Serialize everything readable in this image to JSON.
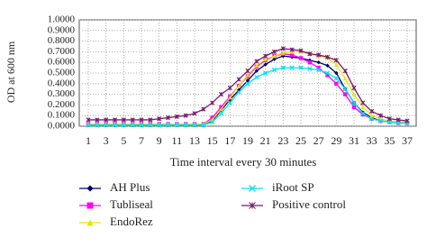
{
  "chart_data": {
    "type": "line",
    "xlabel": "Time interval every 30 minutes",
    "ylabel": "OD at 600 nm",
    "x": [
      1,
      2,
      3,
      4,
      5,
      6,
      7,
      8,
      9,
      10,
      11,
      12,
      13,
      14,
      15,
      16,
      17,
      18,
      19,
      20,
      21,
      22,
      23,
      24,
      25,
      26,
      27,
      28,
      29,
      30,
      31,
      32,
      33,
      34,
      35,
      36,
      37
    ],
    "xlim": [
      1,
      37
    ],
    "xticks": [
      1,
      3,
      5,
      7,
      9,
      11,
      13,
      15,
      17,
      19,
      21,
      23,
      25,
      27,
      29,
      31,
      33,
      35,
      37
    ],
    "ylim": [
      0,
      1
    ],
    "yticks": [
      {
        "value": 0,
        "label": "0.0000"
      },
      {
        "value": 0.1,
        "label": "0.1000"
      },
      {
        "value": 0.2,
        "label": "0.2000"
      },
      {
        "value": 0.3,
        "label": "0.3000"
      },
      {
        "value": 0.4,
        "label": "0.4000"
      },
      {
        "value": 0.5,
        "label": "0.5000"
      },
      {
        "value": 0.6,
        "label": "0.6000"
      },
      {
        "value": 0.7,
        "label": "0.7000"
      },
      {
        "value": 0.8,
        "label": "0.8000"
      },
      {
        "value": 0.9,
        "label": "0.9000"
      },
      {
        "value": 1,
        "label": "1.0000"
      }
    ],
    "grid": true,
    "series": [
      {
        "name": "AH Plus",
        "color": "#000066",
        "marker": "diamond",
        "values": [
          0.01,
          0.01,
          0.01,
          0.01,
          0.01,
          0.01,
          0.01,
          0.01,
          0.01,
          0.01,
          0.01,
          0.01,
          0.01,
          0.01,
          0.05,
          0.15,
          0.25,
          0.34,
          0.43,
          0.52,
          0.58,
          0.63,
          0.66,
          0.65,
          0.64,
          0.62,
          0.6,
          0.57,
          0.5,
          0.35,
          0.22,
          0.13,
          0.08,
          0.05,
          0.04,
          0.03,
          0.03
        ]
      },
      {
        "name": "Tubliseal",
        "color": "#ff00ff",
        "marker": "square",
        "values": [
          0.02,
          0.02,
          0.02,
          0.02,
          0.02,
          0.02,
          0.02,
          0.02,
          0.02,
          0.02,
          0.02,
          0.02,
          0.02,
          0.02,
          0.08,
          0.18,
          0.28,
          0.38,
          0.47,
          0.56,
          0.62,
          0.66,
          0.68,
          0.67,
          0.64,
          0.6,
          0.55,
          0.48,
          0.4,
          0.3,
          0.18,
          0.11,
          0.07,
          0.05,
          0.04,
          0.03,
          0.03
        ]
      },
      {
        "name": "EndoRez",
        "color": "#e6e600",
        "marker": "triangle",
        "values": [
          0.02,
          0.02,
          0.02,
          0.02,
          0.02,
          0.02,
          0.02,
          0.02,
          0.02,
          0.02,
          0.02,
          0.02,
          0.02,
          0.02,
          0.06,
          0.16,
          0.27,
          0.38,
          0.48,
          0.57,
          0.63,
          0.66,
          0.69,
          0.7,
          0.7,
          0.68,
          0.66,
          0.64,
          0.58,
          0.45,
          0.3,
          0.18,
          0.1,
          0.07,
          0.05,
          0.04,
          0.04
        ]
      },
      {
        "name": "iRoot SP",
        "color": "#00e5ee",
        "marker": "x",
        "values": [
          0.01,
          0.01,
          0.01,
          0.01,
          0.01,
          0.01,
          0.01,
          0.01,
          0.01,
          0.01,
          0.01,
          0.01,
          0.01,
          0.01,
          0.04,
          0.12,
          0.22,
          0.32,
          0.4,
          0.46,
          0.5,
          0.53,
          0.55,
          0.55,
          0.55,
          0.54,
          0.53,
          0.5,
          0.45,
          0.35,
          0.22,
          0.12,
          0.07,
          0.05,
          0.04,
          0.03,
          0.03
        ]
      },
      {
        "name": "Positive control",
        "color": "#7a1a6e",
        "marker": "star",
        "values": [
          0.06,
          0.06,
          0.06,
          0.06,
          0.06,
          0.06,
          0.06,
          0.06,
          0.07,
          0.08,
          0.09,
          0.1,
          0.12,
          0.16,
          0.22,
          0.3,
          0.36,
          0.44,
          0.52,
          0.61,
          0.66,
          0.7,
          0.73,
          0.72,
          0.71,
          0.68,
          0.67,
          0.65,
          0.62,
          0.52,
          0.36,
          0.22,
          0.14,
          0.1,
          0.07,
          0.06,
          0.05
        ]
      }
    ]
  }
}
